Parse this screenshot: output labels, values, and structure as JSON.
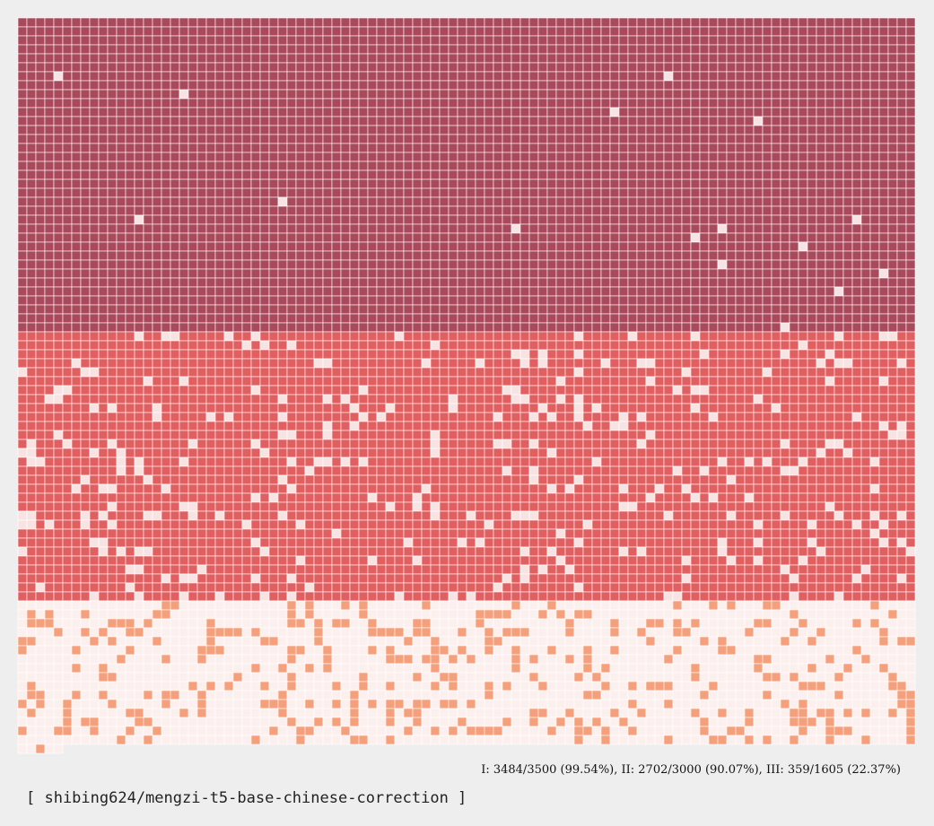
{
  "chart_data": {
    "type": "waffle",
    "columns": 100,
    "fill_order": "row-major",
    "groups": [
      {
        "id": "I",
        "correct": 3484,
        "total": 3500,
        "percent": 99.54,
        "color": "#a84a5c",
        "miss_color": "#f6e4e4"
      },
      {
        "id": "II",
        "correct": 2702,
        "total": 3000,
        "percent": 90.07,
        "color": "#e06061",
        "miss_color": "#f8e3e3"
      },
      {
        "id": "III",
        "correct": 359,
        "total": 1605,
        "percent": 22.37,
        "color": "#f4a07c",
        "miss_color": "#fcf0ee"
      }
    ],
    "background": "#eeeeee",
    "grid_line_color": "#ffffff"
  },
  "summary_text": "I: 3484/3500 (99.54%), II: 2702/3000 (90.07%), III: 359/1605 (22.37%)",
  "model_label": "[ shibing624/mengzi-t5-base-chinese-correction ]"
}
